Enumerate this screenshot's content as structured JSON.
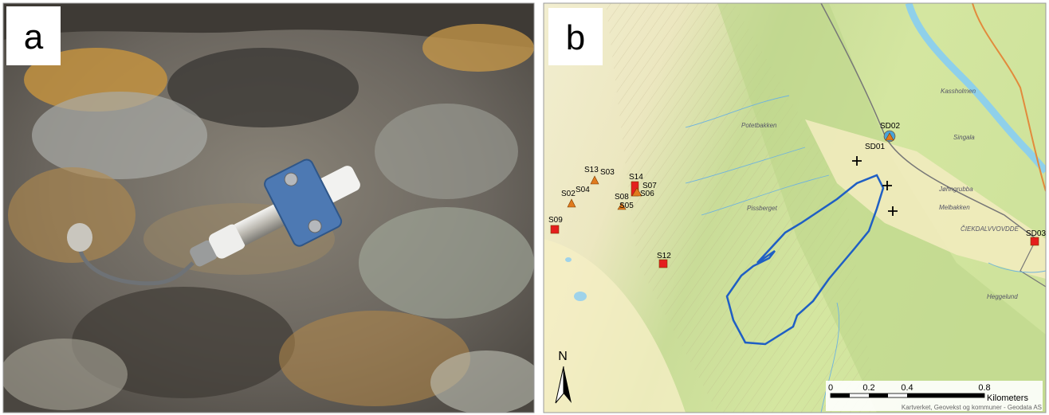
{
  "panels": [
    {
      "label": "a"
    },
    {
      "label": "b"
    }
  ],
  "map": {
    "sites": [
      "S13",
      "S03",
      "S14",
      "S07",
      "S02",
      "S04",
      "S08",
      "S06",
      "S05",
      "S09",
      "S12",
      "SD02",
      "SD01",
      "SD03"
    ],
    "places": [
      "Kassholmen",
      "Singala",
      "Potetbakken",
      "Pissberget",
      "Jøhngrubba",
      "Melbakken",
      "ČIEKDALVVOVDDE",
      "Heggelund"
    ],
    "north": "N",
    "scale_bar": {
      "ticks": [
        "0",
        "0.2",
        "0.4",
        "0.8"
      ],
      "unit": "Kilometers"
    },
    "attribution": "Kartverket, Geovekst og kommuner - Geodata AS"
  }
}
